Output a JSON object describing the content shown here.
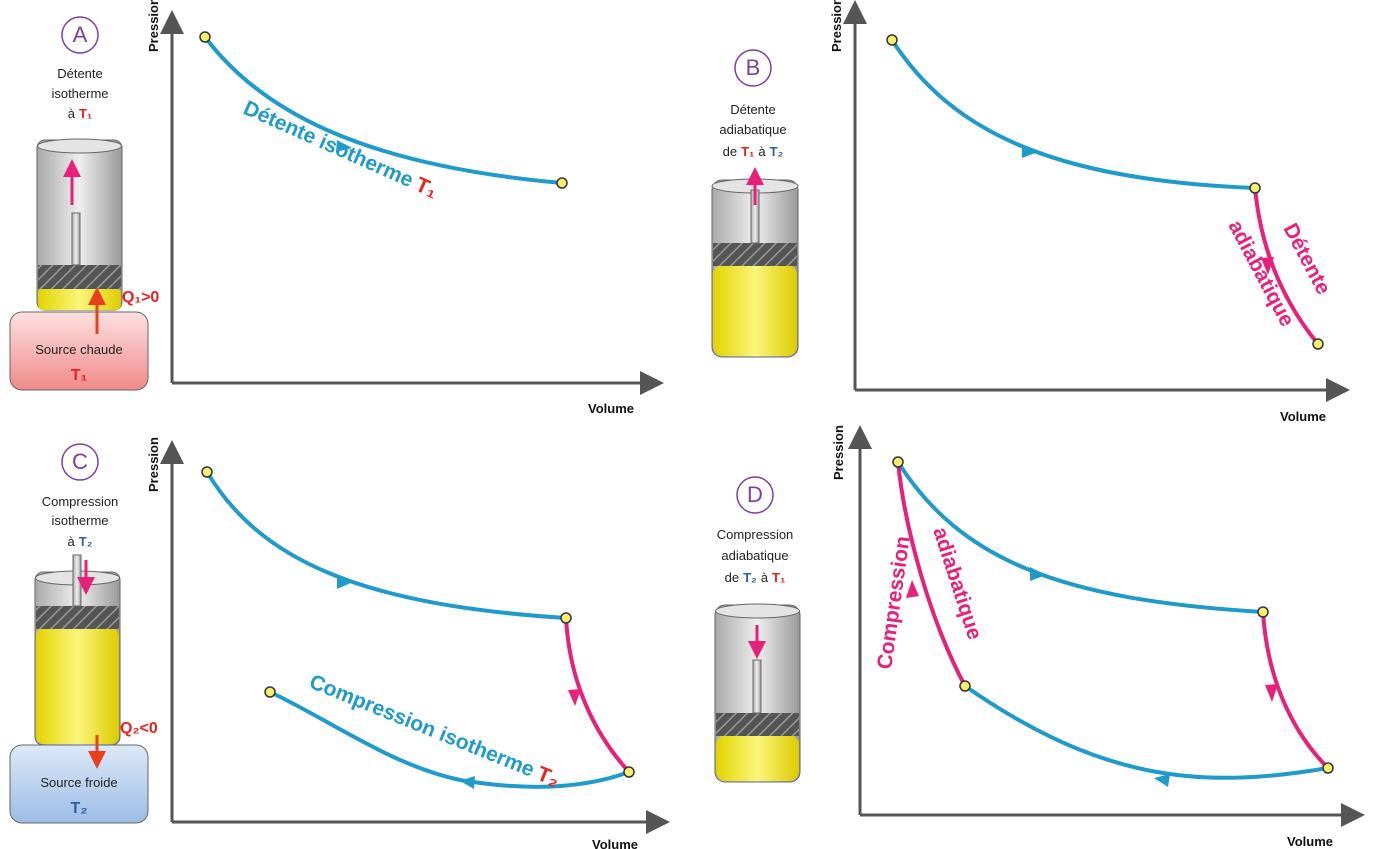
{
  "panels": [
    {
      "letter": "A",
      "caption": [
        [
          "Détente"
        ],
        [
          "isotherme"
        ],
        [
          "à",
          "T₁"
        ]
      ],
      "y_label": "Pression",
      "x_label": "Volume",
      "curve_label": [
        "Détente isotherme",
        "T₁"
      ],
      "source": {
        "name": "Source chaude",
        "temp": "T₁"
      },
      "heat": "Q₁>0"
    },
    {
      "letter": "B",
      "caption": [
        [
          "Détente"
        ],
        [
          "adiabatique"
        ],
        [
          "de",
          "T₁",
          "à",
          "T₂"
        ]
      ],
      "y_label": "Pression",
      "x_label": "Volume",
      "curve_label": [
        "Détente",
        "adiabatique"
      ]
    },
    {
      "letter": "C",
      "caption": [
        [
          "Compression"
        ],
        [
          "isotherme"
        ],
        [
          "à",
          "T₂"
        ]
      ],
      "y_label": "Pression",
      "x_label": "Volume",
      "curve_label": [
        "Compression isotherme",
        "T₂"
      ],
      "source": {
        "name": "Source froide",
        "temp": "T₂"
      },
      "heat": "Q₂<0"
    },
    {
      "letter": "D",
      "caption": [
        [
          "Compression"
        ],
        [
          "adiabatique"
        ],
        [
          "de",
          "T₂",
          "à",
          "T₁"
        ]
      ],
      "y_label": "Pression",
      "x_label": "Volume",
      "curve_label": [
        "Compression",
        "adiabatique"
      ]
    }
  ]
}
